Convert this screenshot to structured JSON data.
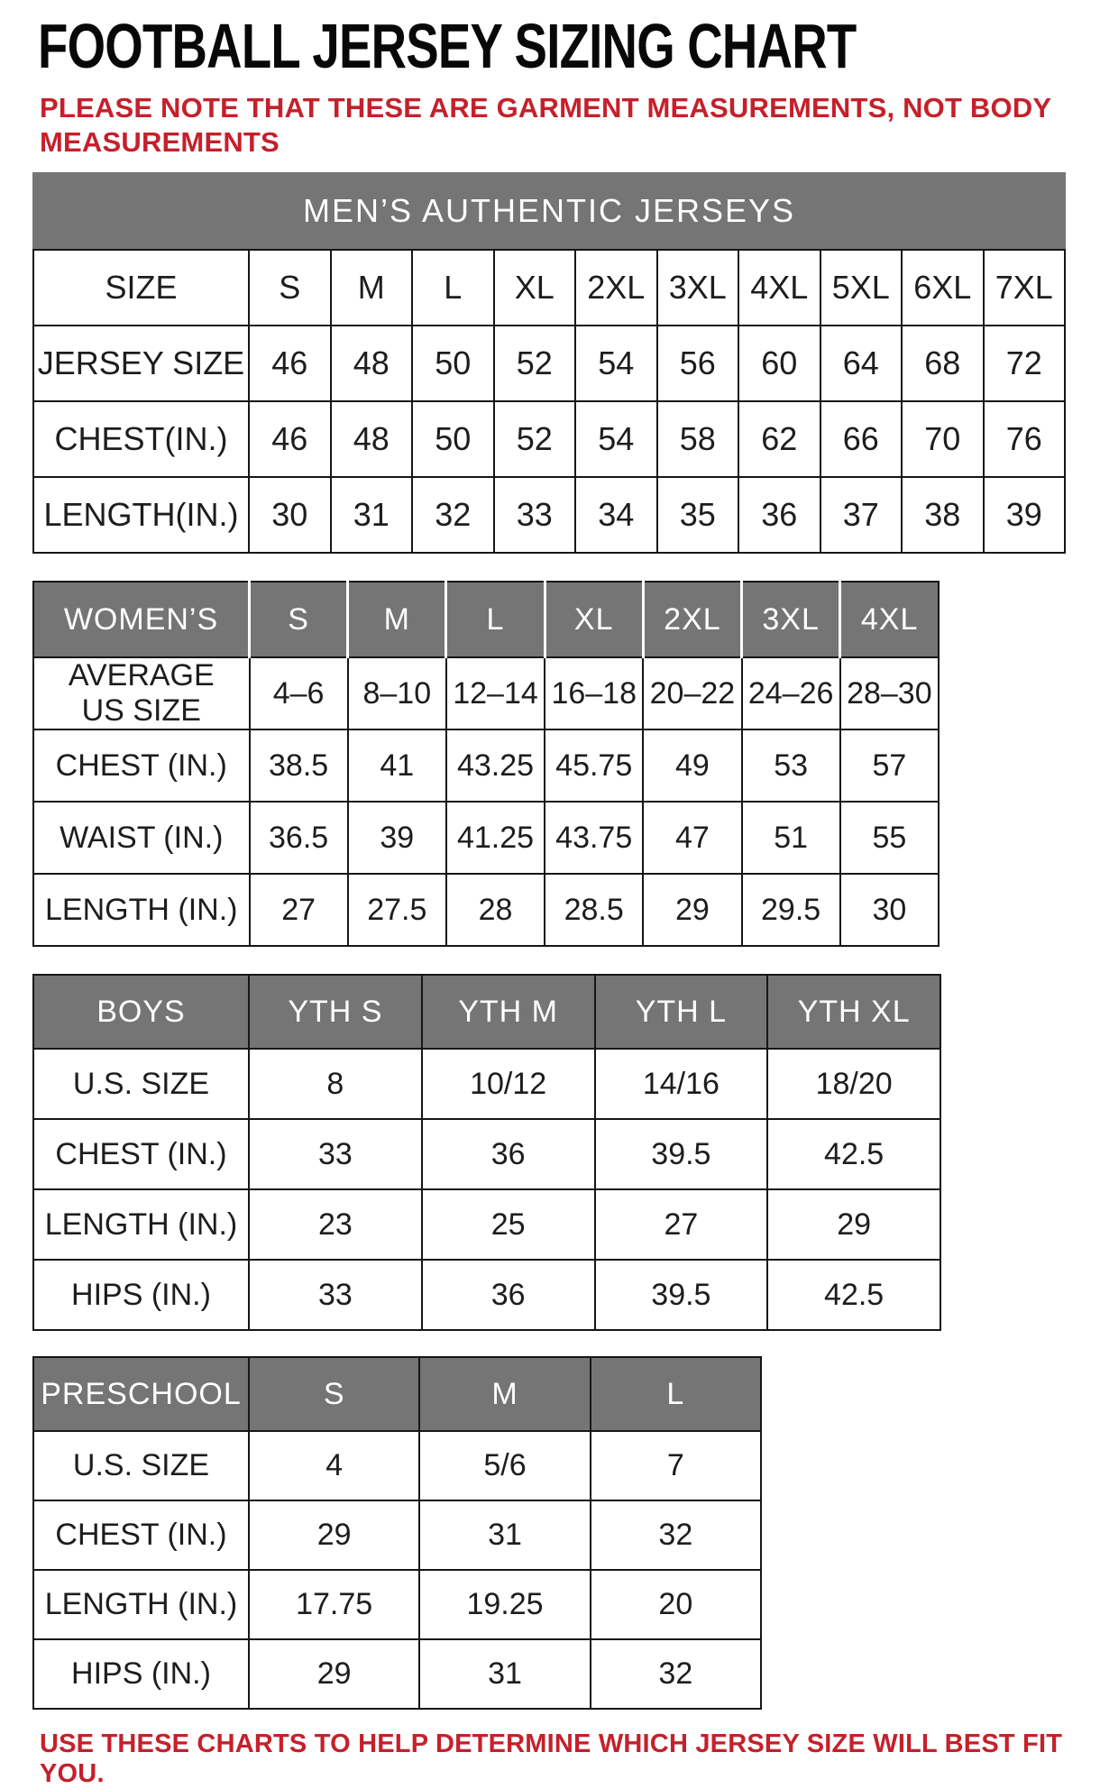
{
  "page": {
    "title": "FOOTBALL JERSEY SIZING CHART",
    "note_line1": "PLEASE NOTE THAT THESE ARE GARMENT MEASUREMENTS, NOT BODY",
    "note_line2": "MEASUREMENTS",
    "footer": "USE THESE CHARTS TO HELP DETERMINE WHICH JERSEY SIZE WILL BEST FIT YOU."
  },
  "colors": {
    "header_gray": "#757575",
    "accent_red": "#c5202b",
    "border_black": "#161616",
    "text_black": "#1d1d1d"
  },
  "tables": {
    "mens": {
      "merged_title": "MEN’S AUTHENTIC JERSEYS",
      "header_style": "plain",
      "header": [
        "SIZE",
        "S",
        "M",
        "L",
        "XL",
        "2XL",
        "3XL",
        "4XL",
        "5XL",
        "6XL",
        "7XL"
      ],
      "rows": [
        [
          "JERSEY SIZE",
          "46",
          "48",
          "50",
          "52",
          "54",
          "56",
          "60",
          "64",
          "68",
          "72"
        ],
        [
          "CHEST(IN.)",
          "46",
          "48",
          "50",
          "52",
          "54",
          "58",
          "62",
          "66",
          "70",
          "76"
        ],
        [
          "LENGTH(IN.)",
          "30",
          "31",
          "32",
          "33",
          "34",
          "35",
          "36",
          "37",
          "38",
          "39"
        ]
      ]
    },
    "womens": {
      "header_style": "gray-light-dividers",
      "header": [
        "WOMEN’S",
        "S",
        "M",
        "L",
        "XL",
        "2XL",
        "3XL",
        "4XL"
      ],
      "rows": [
        [
          "AVERAGE\nUS SIZE",
          "4–6",
          "8–10",
          "12–14",
          "16–18",
          "20–22",
          "24–26",
          "28–30"
        ],
        [
          "CHEST (IN.)",
          "38.5",
          "41",
          "43.25",
          "45.75",
          "49",
          "53",
          "57"
        ],
        [
          "WAIST (IN.)",
          "36.5",
          "39",
          "41.25",
          "43.75",
          "47",
          "51",
          "55"
        ],
        [
          "LENGTH (IN.)",
          "27",
          "27.5",
          "28",
          "28.5",
          "29",
          "29.5",
          "30"
        ]
      ]
    },
    "boys": {
      "header_style": "gray",
      "header": [
        "BOYS",
        "YTH S",
        "YTH M",
        "YTH L",
        "YTH XL"
      ],
      "rows": [
        [
          "U.S. SIZE",
          "8",
          "10/12",
          "14/16",
          "18/20"
        ],
        [
          "CHEST (IN.)",
          "33",
          "36",
          "39.5",
          "42.5"
        ],
        [
          "LENGTH (IN.)",
          "23",
          "25",
          "27",
          "29"
        ],
        [
          "HIPS (IN.)",
          "33",
          "36",
          "39.5",
          "42.5"
        ]
      ]
    },
    "preschool": {
      "header_style": "gray",
      "header": [
        "PRESCHOOL",
        "S",
        "M",
        "L"
      ],
      "rows": [
        [
          "U.S. SIZE",
          "4",
          "5/6",
          "7"
        ],
        [
          "CHEST (IN.)",
          "29",
          "31",
          "32"
        ],
        [
          "LENGTH (IN.)",
          "17.75",
          "19.25",
          "20"
        ],
        [
          "HIPS (IN.)",
          "29",
          "31",
          "32"
        ]
      ]
    }
  }
}
